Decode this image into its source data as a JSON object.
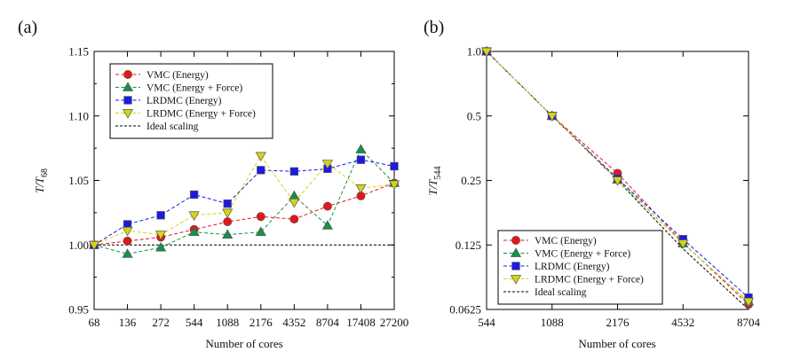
{
  "chart_data": [
    {
      "panel_label": "(a)",
      "type": "line",
      "xlabel": "Number of cores",
      "ylabel_main": "T/T",
      "ylabel_sub": "68",
      "categories": [
        "68",
        "136",
        "272",
        "544",
        "1088",
        "2176",
        "4352",
        "8704",
        "17408",
        "27200"
      ],
      "ylim": [
        0.95,
        1.15
      ],
      "yticks": [
        "0.95",
        "1.00",
        "1.05",
        "1.10",
        "1.15"
      ],
      "legend_position": "top-left",
      "series": [
        {
          "name": "VMC (Energy)",
          "color": "#e8141a",
          "marker": "circle",
          "values": [
            1.0,
            1.003,
            1.006,
            1.012,
            1.018,
            1.022,
            1.02,
            1.03,
            1.038,
            1.048
          ]
        },
        {
          "name": "VMC (Energy + Force)",
          "color": "#14924a",
          "marker": "triangle-up",
          "values": [
            1.0,
            0.993,
            0.998,
            1.01,
            1.008,
            1.01,
            1.038,
            1.015,
            1.074,
            1.048
          ]
        },
        {
          "name": "LRDMC (Energy)",
          "color": "#1a1ae6",
          "marker": "square",
          "values": [
            1.0,
            1.016,
            1.023,
            1.039,
            1.032,
            1.058,
            1.057,
            1.059,
            1.066,
            1.061
          ]
        },
        {
          "name": "LRDMC (Energy + Force)",
          "color": "#d4d414",
          "marker": "triangle-down",
          "values": [
            1.0,
            1.011,
            1.008,
            1.023,
            1.025,
            1.069,
            1.033,
            1.063,
            1.044,
            1.047
          ]
        }
      ],
      "ideal": {
        "name": "Ideal scaling",
        "values": [
          1.0,
          1.0,
          1.0,
          1.0,
          1.0,
          1.0,
          1.0,
          1.0,
          1.0,
          1.0
        ]
      }
    },
    {
      "panel_label": "(b)",
      "type": "line",
      "scale": "log",
      "xlabel": "Number of cores",
      "ylabel_main": "T/T",
      "ylabel_sub": "544",
      "x": [
        544,
        1088,
        2176,
        4532,
        8704
      ],
      "xticks": [
        "544",
        "1088",
        "2176",
        "4532",
        "8704"
      ],
      "ylim": [
        0.0625,
        1.0
      ],
      "yticks": [
        "0.0625",
        "0.125",
        "0.25",
        "0.5",
        "1.0"
      ],
      "legend_position": "bottom-left",
      "series": [
        {
          "name": "VMC (Energy)",
          "color": "#e8141a",
          "marker": "circle",
          "values": [
            1.0,
            0.5,
            0.27,
            0.128,
            0.066
          ]
        },
        {
          "name": "VMC (Energy + Force)",
          "color": "#14924a",
          "marker": "triangle-up",
          "values": [
            1.0,
            0.5,
            0.252,
            0.127,
            0.068
          ]
        },
        {
          "name": "LRDMC (Energy)",
          "color": "#1a1ae6",
          "marker": "square",
          "values": [
            1.0,
            0.5,
            0.255,
            0.133,
            0.071
          ]
        },
        {
          "name": "LRDMC (Energy + Force)",
          "color": "#d4d414",
          "marker": "triangle-down",
          "values": [
            1.0,
            0.5,
            0.25,
            0.127,
            0.068
          ]
        }
      ],
      "ideal": {
        "name": "Ideal scaling",
        "values": [
          1.0,
          0.5,
          0.25,
          0.12,
          0.0625
        ]
      }
    }
  ]
}
